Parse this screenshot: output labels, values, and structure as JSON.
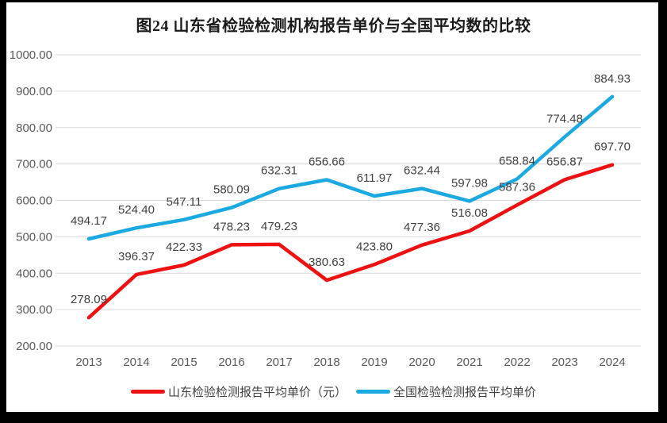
{
  "figure": {
    "frame_color": "#000000",
    "background_color": "#ffffff"
  },
  "chart_data": {
    "type": "line",
    "title": "图24  山东省检验检测机构报告单价与全国平均数的比较",
    "xlabel": "",
    "ylabel": "",
    "categories": [
      "2013",
      "2014",
      "2015",
      "2016",
      "2017",
      "2018",
      "2019",
      "2020",
      "2021",
      "2022",
      "2023",
      "2024"
    ],
    "series": [
      {
        "key": "shandong",
        "name": "山东检验检测报告平均单价（元）",
        "color": "#ee1111",
        "values": [
          278.09,
          396.37,
          422.33,
          478.23,
          479.23,
          380.63,
          423.8,
          477.36,
          516.08,
          587.36,
          656.87,
          697.7
        ]
      },
      {
        "key": "national",
        "name": "全国检验检测报告平均单价",
        "color": "#1ba9e1",
        "values": [
          494.17,
          524.4,
          547.11,
          580.09,
          632.31,
          656.66,
          611.97,
          632.44,
          597.98,
          658.84,
          774.48,
          884.93
        ]
      }
    ],
    "ylim": [
      200,
      1000
    ],
    "ytick_step": 100,
    "ytick_decimals": 2,
    "data_label_decimals": 2,
    "grid": true,
    "grid_color": "#d9d9d9",
    "tick_label_color": "#595959",
    "data_label_color": "#404040",
    "data_labels": "above",
    "legend_position": "bottom"
  }
}
